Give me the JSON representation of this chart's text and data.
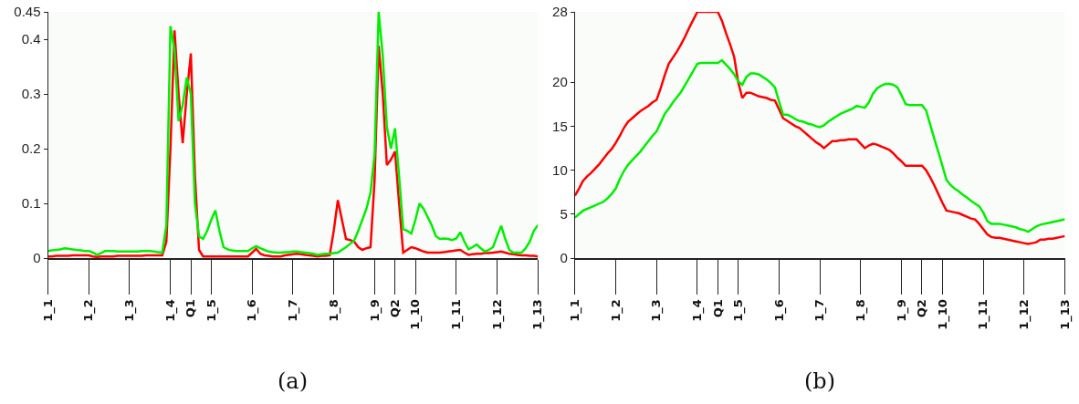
{
  "chart_data": [
    {
      "type": "line",
      "annotations": [
        "(a)"
      ],
      "ylim": [
        0,
        0.45
      ],
      "yticks": [
        0,
        0.1,
        0.2,
        0.3,
        0.4,
        0.45
      ],
      "marker": "none",
      "line_style": "solid",
      "categories": [
        "1_1",
        null,
        null,
        null,
        null,
        null,
        null,
        null,
        null,
        null,
        "1_2",
        null,
        null,
        null,
        null,
        null,
        null,
        null,
        null,
        null,
        "1_3",
        null,
        null,
        null,
        null,
        null,
        null,
        null,
        null,
        null,
        "1_4",
        null,
        null,
        null,
        null,
        "Q1",
        null,
        null,
        null,
        null,
        "1_5",
        null,
        null,
        null,
        null,
        null,
        null,
        null,
        null,
        null,
        "1_6",
        null,
        null,
        null,
        null,
        null,
        null,
        null,
        null,
        null,
        "1_7",
        null,
        null,
        null,
        null,
        null,
        null,
        null,
        null,
        null,
        "1_8",
        null,
        null,
        null,
        null,
        null,
        null,
        null,
        null,
        null,
        "1_9",
        null,
        null,
        null,
        null,
        "Q2",
        null,
        null,
        null,
        null,
        "1_10",
        null,
        null,
        null,
        null,
        null,
        null,
        null,
        null,
        null,
        "1_11",
        null,
        null,
        null,
        null,
        null,
        null,
        null,
        null,
        null,
        "1_12",
        null,
        null,
        null,
        null,
        null,
        null,
        null,
        null,
        null,
        "1_13"
      ],
      "series": [
        {
          "color": "#ff0000",
          "values": [
            0.003,
            0.003,
            0.004,
            0.004,
            0.004,
            0.004,
            0.005,
            0.005,
            0.005,
            0.005,
            0.005,
            0.003,
            0.002,
            0.003,
            0.003,
            0.003,
            0.003,
            0.004,
            0.004,
            0.004,
            0.004,
            0.004,
            0.004,
            0.004,
            0.005,
            0.005,
            0.005,
            0.005,
            0.005,
            0.03,
            0.2,
            0.416,
            0.3,
            0.21,
            0.3,
            0.374,
            0.15,
            0.015,
            0.003,
            0.003,
            0.003,
            0.003,
            0.003,
            0.003,
            0.003,
            0.003,
            0.003,
            0.003,
            0.003,
            0.003,
            0.01,
            0.017,
            0.008,
            0.005,
            0.004,
            0.003,
            0.003,
            0.003,
            0.005,
            0.006,
            0.007,
            0.008,
            0.007,
            0.006,
            0.005,
            0.004,
            0.003,
            0.004,
            0.004,
            0.005,
            0.05,
            0.106,
            0.07,
            0.035,
            0.033,
            0.03,
            0.02,
            0.015,
            0.018,
            0.02,
            0.142,
            0.388,
            0.3,
            0.17,
            0.18,
            0.195,
            0.1,
            0.01,
            0.015,
            0.02,
            0.018,
            0.015,
            0.012,
            0.01,
            0.01,
            0.01,
            0.01,
            0.011,
            0.012,
            0.013,
            0.014,
            0.015,
            0.01,
            0.006,
            0.007,
            0.008,
            0.008,
            0.009,
            0.009,
            0.01,
            0.011,
            0.012,
            0.01,
            0.008,
            0.007,
            0.006,
            0.005,
            0.005,
            0.004,
            0.004,
            0.003
          ]
        },
        {
          "color": "#00ee00",
          "values": [
            0.013,
            0.014,
            0.015,
            0.016,
            0.018,
            0.017,
            0.016,
            0.015,
            0.014,
            0.013,
            0.013,
            0.01,
            0.006,
            0.009,
            0.013,
            0.013,
            0.013,
            0.012,
            0.012,
            0.012,
            0.012,
            0.012,
            0.012,
            0.013,
            0.013,
            0.013,
            0.012,
            0.011,
            0.01,
            0.06,
            0.424,
            0.38,
            0.25,
            0.28,
            0.33,
            0.3,
            0.1,
            0.04,
            0.035,
            0.05,
            0.07,
            0.087,
            0.05,
            0.02,
            0.016,
            0.014,
            0.013,
            0.013,
            0.013,
            0.013,
            0.018,
            0.022,
            0.018,
            0.015,
            0.012,
            0.011,
            0.01,
            0.01,
            0.011,
            0.011,
            0.012,
            0.012,
            0.011,
            0.01,
            0.009,
            0.008,
            0.006,
            0.007,
            0.008,
            0.008,
            0.009,
            0.01,
            0.015,
            0.02,
            0.026,
            0.032,
            0.05,
            0.07,
            0.09,
            0.12,
            0.19,
            0.45,
            0.37,
            0.24,
            0.2,
            0.237,
            0.15,
            0.053,
            0.05,
            0.045,
            0.07,
            0.1,
            0.09,
            0.075,
            0.06,
            0.04,
            0.035,
            0.036,
            0.035,
            0.033,
            0.036,
            0.047,
            0.03,
            0.016,
            0.02,
            0.025,
            0.018,
            0.012,
            0.015,
            0.02,
            0.04,
            0.059,
            0.035,
            0.015,
            0.01,
            0.01,
            0.01,
            0.018,
            0.03,
            0.05,
            0.06
          ]
        }
      ]
    },
    {
      "type": "line",
      "annotations": [
        "(b)"
      ],
      "ylim": [
        0,
        28
      ],
      "yticks": [
        0,
        5,
        10,
        15,
        20,
        28
      ],
      "marker": "none",
      "line_style": "solid",
      "categories": [
        "1_1",
        null,
        null,
        null,
        null,
        null,
        null,
        null,
        null,
        null,
        "1_2",
        null,
        null,
        null,
        null,
        null,
        null,
        null,
        null,
        null,
        "1_3",
        null,
        null,
        null,
        null,
        null,
        null,
        null,
        null,
        null,
        "1_4",
        null,
        null,
        null,
        null,
        "Q1",
        null,
        null,
        null,
        null,
        "1_5",
        null,
        null,
        null,
        null,
        null,
        null,
        null,
        null,
        null,
        "1_6",
        null,
        null,
        null,
        null,
        null,
        null,
        null,
        null,
        null,
        "1_7",
        null,
        null,
        null,
        null,
        null,
        null,
        null,
        null,
        null,
        "1_8",
        null,
        null,
        null,
        null,
        null,
        null,
        null,
        null,
        null,
        "1_9",
        null,
        null,
        null,
        null,
        "Q2",
        null,
        null,
        null,
        null,
        "1_10",
        null,
        null,
        null,
        null,
        null,
        null,
        null,
        null,
        null,
        "1_11",
        null,
        null,
        null,
        null,
        null,
        null,
        null,
        null,
        null,
        "1_12",
        null,
        null,
        null,
        null,
        null,
        null,
        null,
        null,
        null,
        "1_13"
      ],
      "series": [
        {
          "color": "#ff0000",
          "values": [
            7.1,
            7.9,
            8.8,
            9.3,
            9.7,
            10.2,
            10.7,
            11.3,
            11.9,
            12.4,
            13.1,
            13.9,
            14.8,
            15.5,
            15.9,
            16.3,
            16.7,
            17.0,
            17.3,
            17.7,
            18.0,
            19.3,
            20.8,
            22.1,
            22.8,
            23.5,
            24.3,
            25.2,
            26.2,
            27.1,
            28,
            28,
            28,
            28,
            28,
            28,
            27.0,
            25.6,
            24.3,
            22.9,
            20.0,
            18.2,
            18.8,
            18.8,
            18.6,
            18.4,
            18.3,
            18.2,
            18.0,
            17.9,
            16.9,
            15.9,
            15.6,
            15.3,
            15.0,
            14.8,
            14.4,
            14.0,
            13.6,
            13.2,
            12.9,
            12.5,
            12.9,
            13.3,
            13.3,
            13.4,
            13.4,
            13.5,
            13.5,
            13.5,
            13.0,
            12.5,
            12.8,
            13.0,
            12.9,
            12.7,
            12.5,
            12.3,
            11.9,
            11.4,
            11.0,
            10.5,
            10.5,
            10.5,
            10.5,
            10.5,
            10.0,
            9.2,
            8.3,
            7.3,
            6.3,
            5.4,
            5.3,
            5.2,
            5.1,
            4.9,
            4.7,
            4.5,
            4.4,
            3.9,
            3.3,
            2.7,
            2.4,
            2.3,
            2.3,
            2.2,
            2.1,
            2.0,
            1.9,
            1.8,
            1.7,
            1.6,
            1.7,
            1.8,
            2.1,
            2.1,
            2.2,
            2.2,
            2.3,
            2.4,
            2.5
          ]
        },
        {
          "color": "#00ee00",
          "values": [
            4.6,
            5.0,
            5.4,
            5.6,
            5.8,
            6.0,
            6.2,
            6.4,
            6.8,
            7.3,
            7.9,
            9.0,
            9.9,
            10.6,
            11.1,
            11.6,
            12.1,
            12.7,
            13.3,
            13.9,
            14.4,
            15.4,
            16.4,
            17.0,
            17.7,
            18.3,
            18.9,
            19.7,
            20.5,
            21.3,
            22.1,
            22.2,
            22.2,
            22.2,
            22.2,
            22.2,
            22.5,
            22.0,
            21.5,
            20.9,
            20.1,
            19.7,
            20.6,
            21.0,
            21.0,
            20.9,
            20.6,
            20.3,
            19.9,
            19.4,
            17.8,
            16.3,
            16.3,
            16.1,
            15.8,
            15.6,
            15.5,
            15.3,
            15.2,
            15.0,
            14.9,
            15.1,
            15.5,
            15.8,
            16.1,
            16.4,
            16.6,
            16.8,
            17.0,
            17.3,
            17.2,
            17.1,
            17.7,
            18.7,
            19.3,
            19.6,
            19.8,
            19.8,
            19.7,
            19.4,
            18.5,
            17.5,
            17.4,
            17.4,
            17.4,
            17.4,
            16.8,
            15.2,
            13.6,
            12.1,
            10.5,
            8.9,
            8.3,
            7.9,
            7.6,
            7.2,
            6.9,
            6.5,
            6.2,
            5.9,
            5.2,
            4.2,
            3.9,
            3.9,
            3.9,
            3.8,
            3.7,
            3.6,
            3.5,
            3.3,
            3.2,
            3.0,
            3.3,
            3.6,
            3.8,
            3.9,
            4.0,
            4.1,
            4.2,
            4.3,
            4.4
          ]
        }
      ]
    }
  ]
}
